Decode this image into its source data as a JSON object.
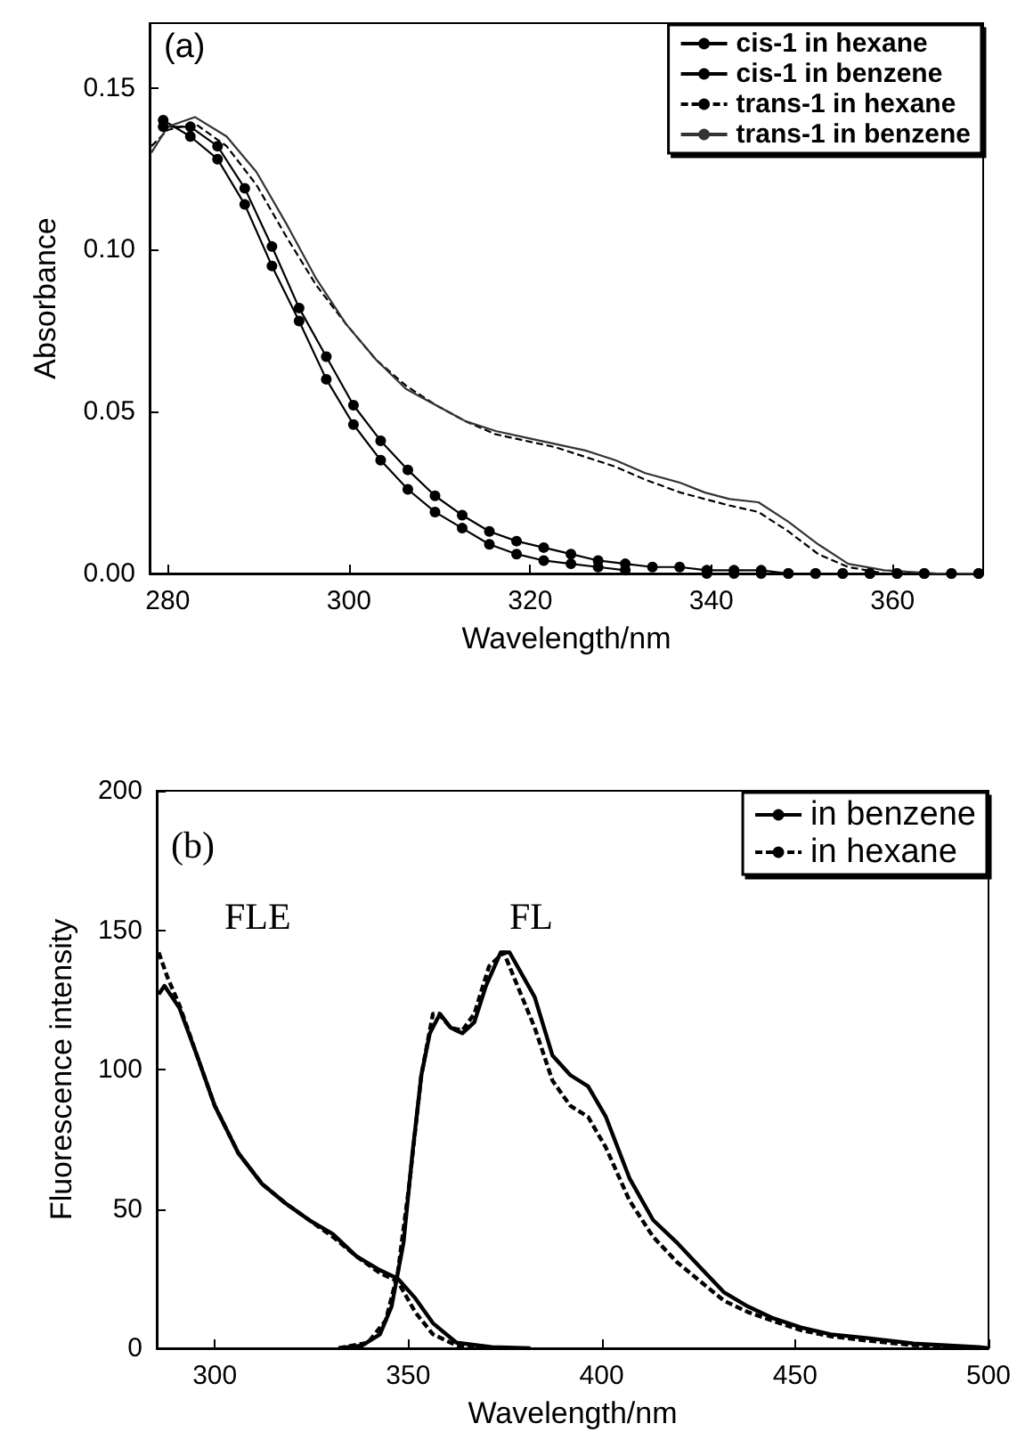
{
  "chart_data": [
    {
      "type": "line",
      "xlabel": "Wavelength/nm",
      "ylabel": "Absorbance",
      "annotations": [
        "(a)"
      ],
      "xlim": [
        278,
        370
      ],
      "xticks": [
        280,
        300,
        320,
        340,
        360
      ],
      "ylim": [
        0,
        0.17
      ],
      "yticks": [
        {
          "value": 0,
          "label": "0.00"
        },
        {
          "value": 0.05,
          "label": "0.05"
        },
        {
          "value": 0.1,
          "label": "0.10"
        },
        {
          "value": 0.15,
          "label": "0.15"
        }
      ],
      "grid": false,
      "legend": "top right",
      "series": [
        {
          "name": "cis-1 in hexane",
          "color": "#000000",
          "marker": "circle",
          "line_style": "solid",
          "x": [
            279.5,
            282.5,
            285.5,
            288.5,
            291.5,
            294.5,
            297.5,
            300.5,
            303.5,
            306.5,
            309.5,
            312.5,
            315.5,
            318.5,
            321.5,
            324.5,
            327.5,
            330.5,
            333.5,
            336.5,
            339.5,
            342.5,
            345.5,
            348.5,
            351.5,
            354.5,
            357.5,
            360.5,
            363.5,
            366.5,
            369.5
          ],
          "values": [
            0.14,
            0.135,
            0.128,
            0.114,
            0.095,
            0.078,
            0.06,
            0.046,
            0.035,
            0.026,
            0.019,
            0.014,
            0.009,
            0.006,
            0.004,
            0.003,
            0.002,
            0.001,
            null,
            null,
            0,
            0,
            0,
            0,
            0,
            0,
            0,
            0,
            0,
            0,
            0
          ]
        },
        {
          "name": "cis-1 in benzene",
          "color": "#000000",
          "marker": "circle",
          "line_style": "solid",
          "x": [
            279.5,
            282.5,
            285.5,
            288.5,
            291.5,
            294.5,
            297.5,
            300.5,
            303.5,
            306.5,
            309.5,
            312.5,
            315.5,
            318.5,
            321.5,
            324.5,
            327.5,
            330.5,
            333.5,
            336.5,
            339.5,
            342.5,
            345.5,
            348.5,
            351.5,
            354.5,
            357.5,
            360.5,
            363.5,
            366.5,
            369.5
          ],
          "values": [
            0.138,
            0.138,
            0.132,
            0.119,
            0.101,
            0.082,
            0.067,
            0.052,
            0.041,
            0.032,
            0.024,
            0.018,
            0.013,
            0.01,
            0.008,
            0.006,
            0.004,
            0.003,
            0.002,
            0.002,
            0.001,
            0.001,
            0.001,
            0,
            0,
            0,
            0,
            0,
            0,
            0,
            0
          ]
        },
        {
          "name": "trans-1 in hexane",
          "color": "#000000",
          "marker": "none",
          "line_style": "dashed",
          "x": [
            278.2,
            280,
            283,
            286.5,
            289.8,
            293.1,
            296.4,
            299.7,
            303,
            306.3,
            309.6,
            312.9,
            316.2,
            319.5,
            322.8,
            326.1,
            329.4,
            332.7,
            336.6,
            339.3,
            342,
            345.2,
            348.5,
            351.8,
            355.1,
            359.1,
            365,
            370
          ],
          "values": [
            0.132,
            0.137,
            0.139,
            0.132,
            0.12,
            0.104,
            0.089,
            0.077,
            0.066,
            0.058,
            0.052,
            0.047,
            0.043,
            0.041,
            0.039,
            0.036,
            0.033,
            0.029,
            0.025,
            0.023,
            0.021,
            0.019,
            0.013,
            0.006,
            0.002,
            0,
            0,
            0
          ]
        },
        {
          "name": "trans-1 in benzene",
          "color": "#333333",
          "marker": "none",
          "line_style": "solid",
          "x": [
            278.2,
            280,
            283,
            286.5,
            289.8,
            293.1,
            296.4,
            299.7,
            303,
            306.3,
            309.6,
            312.9,
            316.2,
            319.5,
            322.8,
            326.1,
            329.4,
            332.7,
            336.6,
            339.3,
            342,
            345.2,
            348.5,
            351.8,
            355.1,
            359.1,
            365,
            370
          ],
          "values": [
            0.13,
            0.138,
            0.141,
            0.135,
            0.124,
            0.108,
            0.091,
            0.077,
            0.066,
            0.057,
            0.052,
            0.047,
            0.044,
            0.042,
            0.04,
            0.038,
            0.035,
            0.031,
            0.028,
            0.025,
            0.023,
            0.022,
            0.016,
            0.009,
            0.003,
            0.001,
            0,
            0
          ]
        }
      ]
    },
    {
      "type": "line",
      "xlabel": "Wavelength/nm",
      "ylabel": "Fluorescence intensity",
      "annotations": [
        "(b)",
        "FLE",
        "FL"
      ],
      "xlim": [
        285,
        500
      ],
      "xticks": [
        300,
        350,
        400,
        450,
        500
      ],
      "ylim": [
        0,
        200
      ],
      "yticks": [
        0,
        50,
        100,
        150,
        200
      ],
      "grid": false,
      "legend": "top right",
      "series": [
        {
          "name": "in benzene",
          "color": "#000000",
          "marker": "none",
          "line_style": "solid",
          "x": [
            332,
            338.1,
            342.7,
            345.7,
            348.8,
            351.1,
            353.4,
            355.6,
            358.2,
            361,
            364,
            367.1,
            370.1,
            373.9,
            376.2,
            382.7,
            387.3,
            391.9,
            396.5,
            401.1,
            407.2,
            413.3,
            419.4,
            425.5,
            431.7,
            437.8,
            443.9,
            451.5,
            459.2,
            468.3,
            480.6,
            497.4,
            500
          ],
          "values": [
            0,
            1,
            5,
            15,
            38,
            70,
            98,
            113,
            120,
            115,
            113,
            117,
            130,
            142,
            142,
            126,
            105,
            98,
            94,
            83,
            61,
            46,
            38,
            29,
            20,
            15,
            11,
            7.5,
            5,
            3.7,
            1.7,
            0.4,
            0
          ]
        },
        {
          "name": "in hexane",
          "color": "#000000",
          "marker": "none",
          "line_style": "dashed",
          "x": [
            332,
            339.6,
            344.2,
            347.3,
            350.3,
            353.4,
            356.4,
            357.9,
            361,
            364,
            367.1,
            370.9,
            374.7,
            382.7,
            387.3,
            391.9,
            396.5,
            401.1,
            407.2,
            413.3,
            419.4,
            425.5,
            431.7,
            437.8,
            443.9,
            451.5,
            459.2,
            468.3,
            480.6,
            497.4
          ],
          "values": [
            0,
            2,
            10,
            27,
            59,
            98,
            120,
            120,
            115,
            114,
            120,
            137,
            142,
            115,
            96,
            87,
            83,
            72,
            53,
            40,
            31,
            24,
            17,
            13,
            10,
            6.5,
            4.3,
            2.8,
            1.1,
            0
          ]
        },
        {
          "color": "#000000",
          "marker": "none",
          "line_style": "solid",
          "x": [
            285.5,
            287,
            290.9,
            295.4,
            300,
            306.1,
            312.2,
            318.3,
            324.4,
            330.5,
            336.6,
            342.7,
            347.3,
            351.8,
            356.4,
            362.5,
            371.6,
            381.6
          ],
          "values": [
            127,
            130,
            122,
            105,
            87,
            70,
            59,
            52,
            46,
            41,
            33,
            28,
            25,
            18,
            9,
            2,
            0.4,
            0
          ]
        },
        {
          "color": "#000000",
          "marker": "none",
          "line_style": "dashed",
          "x": [
            285.5,
            287.8,
            290.9,
            295.4,
            300,
            306.1,
            312.2,
            318.3,
            324.4,
            330.5,
            336.6,
            342.7,
            347.3,
            351.8,
            356.4,
            362.5,
            367
          ],
          "values": [
            142,
            133,
            123,
            105,
            87,
            70,
            59,
            52,
            46,
            40,
            33,
            27,
            24,
            13,
            5,
            1,
            0
          ]
        }
      ]
    }
  ]
}
